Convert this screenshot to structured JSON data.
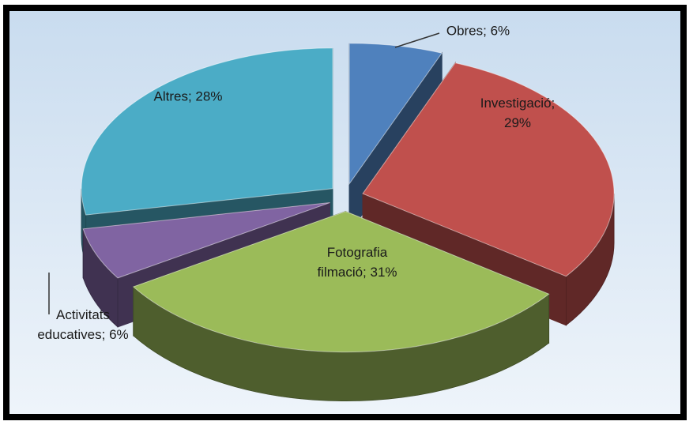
{
  "chart_data": {
    "type": "pie3d",
    "labels": [
      [
        "Obres; 6%"
      ],
      [
        "Investigació;",
        "29%"
      ],
      [
        "Fotografia",
        "filmació; 31%"
      ],
      [
        "Activitats",
        "educatives; 6%"
      ],
      [
        "Altres; 28%"
      ]
    ],
    "values": [
      6,
      29,
      31,
      6,
      28
    ],
    "colors": [
      "#4f81bd",
      "#c0504d",
      "#9bbb59",
      "#8064a2",
      "#4bacc6"
    ]
  }
}
